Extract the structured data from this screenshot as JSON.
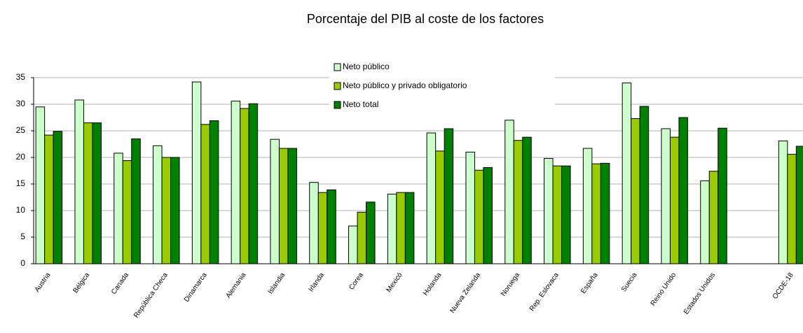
{
  "chart_data": {
    "type": "bar",
    "title": "Porcentaje del PIB al coste de los factores",
    "categories": [
      "Austria",
      "Bélgica",
      "Canada",
      "República Checa",
      "Dinamarca",
      "Alemania",
      "Islandia",
      "Irlanda",
      "Corea",
      "Mexicó",
      "Holanda",
      "Nueva Zelanda",
      "Noruega",
      "Rep. Eslovaca",
      "España",
      "Suecia",
      "Reino Unido",
      "Estados Unidos",
      null,
      "OCDE-18"
    ],
    "series": [
      {
        "name": "Neto público",
        "color": "#ccffcc",
        "values": [
          29.5,
          30.8,
          20.8,
          22.2,
          34.2,
          30.6,
          23.4,
          15.3,
          7.1,
          13.1,
          24.6,
          21.0,
          27.0,
          19.8,
          21.7,
          34.0,
          25.4,
          15.6,
          null,
          23.1
        ]
      },
      {
        "name": "Neto público y privado obligatorio",
        "color": "#99cc00",
        "values": [
          24.2,
          26.5,
          19.4,
          20.0,
          26.2,
          29.2,
          21.7,
          13.4,
          9.7,
          13.4,
          21.2,
          17.6,
          23.2,
          18.4,
          18.8,
          27.3,
          23.8,
          17.4,
          null,
          20.6
        ]
      },
      {
        "name": "Neto total",
        "color": "#008000",
        "values": [
          24.9,
          26.5,
          23.5,
          20.0,
          26.9,
          30.1,
          21.7,
          13.9,
          11.6,
          13.4,
          25.4,
          18.1,
          23.8,
          18.4,
          18.9,
          29.6,
          27.5,
          25.5,
          null,
          22.1
        ]
      }
    ],
    "ylim": [
      0,
      35
    ],
    "yticks": [
      0,
      5,
      10,
      15,
      20,
      25,
      30,
      35
    ],
    "grid": true,
    "legend_position": "top"
  }
}
